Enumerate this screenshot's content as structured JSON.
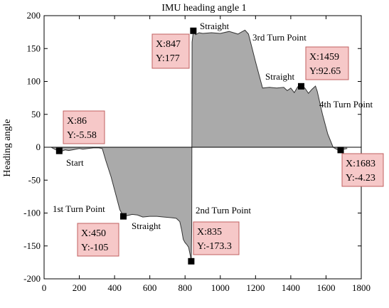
{
  "chart_data": {
    "type": "area",
    "title": "IMU heading angle 1",
    "xlabel": "",
    "ylabel": "Heading angle",
    "xlim": [
      0,
      1800
    ],
    "ylim": [
      -200,
      200
    ],
    "xticks": [
      "0",
      "200",
      "400",
      "600",
      "800",
      "1000",
      "1200",
      "1400",
      "1600",
      "1800"
    ],
    "yticks": [
      "200",
      "150",
      "100",
      "50",
      "0",
      "-50",
      "-100",
      "-150",
      "-200"
    ],
    "grid": false,
    "fill_color": "#aaaaaa",
    "datatip_fill": "#f6c8c8",
    "datatip_border": "#c06060",
    "series": [
      {
        "x": [
          0,
          40,
          60,
          80,
          86,
          100,
          120,
          140,
          160,
          180,
          200,
          220,
          250,
          280,
          310,
          330,
          350,
          380,
          410,
          430,
          445,
          450,
          470,
          500,
          530,
          560,
          600,
          640,
          680,
          720,
          750,
          770,
          780,
          790,
          800,
          810,
          820,
          830,
          835,
          838,
          840,
          845,
          847,
          860,
          880,
          900,
          950,
          1000,
          1050,
          1100,
          1120,
          1140,
          1160,
          1200,
          1240,
          1280,
          1320,
          1360,
          1380,
          1400,
          1420,
          1440,
          1459,
          1480,
          1500,
          1520,
          1540,
          1550,
          1580,
          1610,
          1640,
          1660,
          1670,
          1683,
          1700,
          1720
        ],
        "y": [
          0,
          0,
          -3,
          -5,
          -5.58,
          -6,
          -4,
          -5,
          -4,
          -3,
          -2,
          -3,
          -2,
          -1,
          -1,
          -2,
          -20,
          -45,
          -75,
          -95,
          -102,
          -105,
          -104,
          -102,
          -103,
          -106,
          -105,
          -105,
          -106,
          -107,
          -108,
          -113,
          -125,
          -140,
          -145,
          -148,
          -152,
          -165,
          -173.3,
          -120,
          160,
          172,
          177,
          171,
          174,
          173,
          174,
          173,
          176,
          172,
          175,
          178,
          172,
          130,
          90,
          91,
          90,
          91,
          86,
          90,
          83,
          92,
          92.65,
          90,
          82,
          88,
          93,
          85,
          50,
          20,
          0,
          -3,
          -4,
          -4.23,
          -3,
          -2
        ]
      }
    ],
    "datatips": [
      {
        "x": 86,
        "y": -5.58,
        "label_x": "X:86",
        "label_y": "Y:-5.58"
      },
      {
        "x": 450,
        "y": -105,
        "label_x": "X:450",
        "label_y": "Y:-105"
      },
      {
        "x": 847,
        "y": 177,
        "label_x": "X:847",
        "label_y": "Y:177"
      },
      {
        "x": 835,
        "y": -173.3,
        "label_x": "X:835",
        "label_y": "Y:-173.3"
      },
      {
        "x": 1459,
        "y": 92.65,
        "label_x": "X:1459",
        "label_y": "Y:92.65"
      },
      {
        "x": 1683,
        "y": -4.23,
        "label_x": "X:1683",
        "label_y": "Y:-4.23"
      }
    ],
    "annotations": [
      "Start",
      "1st Turn Point",
      "Straight",
      "2nd Turn Point",
      "Straight",
      "3rd Turn Point",
      "Straight",
      "4th Turn Point"
    ]
  }
}
